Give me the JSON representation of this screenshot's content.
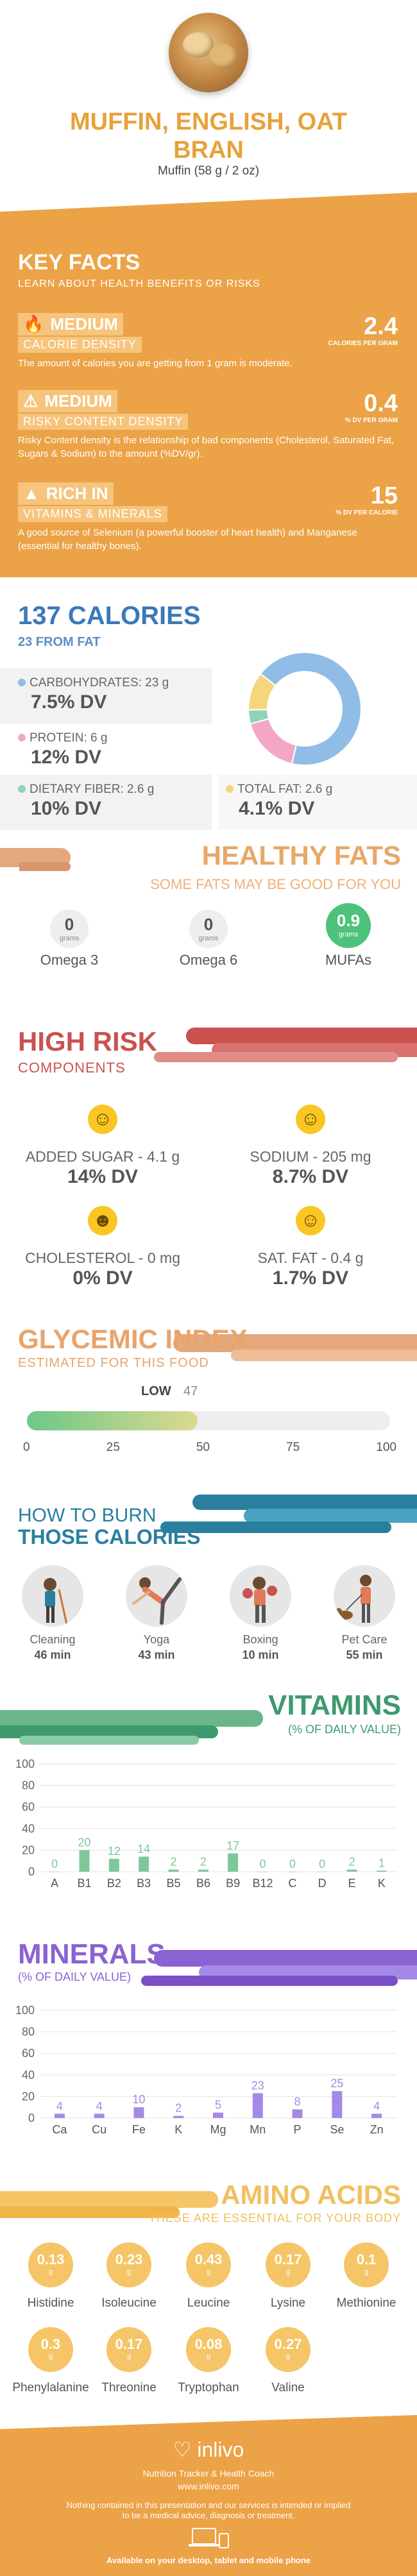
{
  "header": {
    "title_line1": "MUFFIN, ENGLISH, OAT",
    "title_line2": "BRAN",
    "serving": "Muffin (58 g / 2 oz)"
  },
  "key_facts": {
    "title": "KEY FACTS",
    "subtitle": "LEARN ABOUT HEALTH BENEFITS OR RISKS",
    "items": [
      {
        "level": "MEDIUM",
        "label": "CALORIE DENSITY",
        "value": "2.4",
        "unit": "CALORIES PER GRAM",
        "desc": "The amount of calories you are getting from 1 gram is moderate."
      },
      {
        "level": "MEDIUM",
        "label": "RISKY CONTENT DENSITY",
        "value": "0.4",
        "unit": "% DV PER GRAM",
        "desc": "Risky Content density is the relationship of bad components (Cholesterol, Saturated Fat, Sugars & Sodium) to the amount (%DV/gr)."
      },
      {
        "level": "RICH  IN",
        "label": "VITAMINS & MINERALS",
        "value": "15",
        "unit": "% DV PER CALORIE",
        "desc": "A good source of Selenium (a powerful booster of heart health) and Manganese (essential for healthy bones)."
      }
    ]
  },
  "calories": {
    "title": "137 CALORIES",
    "subtitle": "23 FROM FAT",
    "carbs_label": "CARBOHYDRATES: 23 g",
    "carbs_dv": "7.5% DV",
    "protein_label": "PROTEIN: 6 g",
    "protein_dv": "12% DV",
    "fiber_label": "DIETARY FIBER: 2.6 g",
    "fiber_dv": "10% DV",
    "fat_label": "TOTAL FAT: 2.6 g",
    "fat_dv": "4.1% DV",
    "colors": {
      "carbs": "#8fbde6",
      "protein": "#f3a6c6",
      "fiber": "#8fd3b5",
      "fat": "#f7d57d"
    },
    "donut_shares": {
      "carbs": 0.68,
      "protein": 0.17,
      "fiber": 0.04,
      "fat": 0.11
    }
  },
  "healthy_fats": {
    "title": "HEALTHY FATS",
    "subtitle": "SOME FATS MAY BE GOOD FOR YOU",
    "unit": "grams",
    "items": [
      {
        "value": "0",
        "label": "Omega 3"
      },
      {
        "value": "0",
        "label": "Omega 6"
      },
      {
        "value": "0.9",
        "label": "MUFAs"
      }
    ]
  },
  "high_risk": {
    "title": "HIGH RISK",
    "subtitle": "COMPONENTS",
    "items": [
      {
        "label": "ADDED SUGAR - 4.1 g",
        "dv": "14% DV"
      },
      {
        "label": "SODIUM - 205 mg",
        "dv": "8.7% DV"
      },
      {
        "label": "CHOLESTEROL - 0 mg",
        "dv": "0% DV"
      },
      {
        "label": "SAT. FAT - 0.4 g",
        "dv": "1.7% DV"
      }
    ]
  },
  "glycemic": {
    "title": "GLYCEMIC INDEX",
    "subtitle": "ESTIMATED FOR THIS FOOD",
    "level": "LOW",
    "value": "47",
    "value_num": 47,
    "ticks": [
      "0",
      "25",
      "50",
      "75",
      "100"
    ]
  },
  "burn": {
    "title1": "HOW TO BURN",
    "title2": "THOSE CALORIES",
    "items": [
      {
        "label": "Cleaning",
        "minutes": "46 min"
      },
      {
        "label": "Yoga",
        "minutes": "43 min"
      },
      {
        "label": "Boxing",
        "minutes": "10 min"
      },
      {
        "label": "Pet Care",
        "minutes": "55 min"
      }
    ]
  },
  "vitamins": {
    "title": "VITAMINS",
    "subtitle": "(% OF DAILY VALUE)"
  },
  "minerals": {
    "title": "MINERALS",
    "subtitle": "(% OF DAILY VALUE)"
  },
  "chart_data": [
    {
      "type": "bar",
      "categories": [
        "A",
        "B1",
        "B2",
        "B3",
        "B5",
        "B6",
        "B9",
        "B12",
        "C",
        "D",
        "E",
        "K"
      ],
      "values": [
        0,
        20,
        12,
        14,
        2,
        2,
        17,
        0,
        0,
        0,
        2,
        1
      ],
      "ylim": [
        0,
        100
      ],
      "yticks": [
        "0",
        "20",
        "40",
        "60",
        "80",
        "100"
      ],
      "color": "#7fc79a"
    },
    {
      "type": "bar",
      "categories": [
        "Ca",
        "Cu",
        "Fe",
        "K",
        "Mg",
        "Mn",
        "P",
        "Se",
        "Zn"
      ],
      "values": [
        4,
        4,
        10,
        2,
        5,
        23,
        8,
        25,
        4
      ],
      "ylim": [
        0,
        100
      ],
      "yticks": [
        "0",
        "20",
        "40",
        "60",
        "80",
        "100"
      ],
      "color": "#a48ae6"
    }
  ],
  "amino": {
    "title": "AMINO ACIDS",
    "subtitle": "THESE ARE ESSENTIAL FOR YOUR BODY",
    "unit": "g",
    "items": [
      {
        "value": "0.13",
        "label": "Histidine"
      },
      {
        "value": "0.23",
        "label": "Isoleucine"
      },
      {
        "value": "0.43",
        "label": "Leucine"
      },
      {
        "value": "0.17",
        "label": "Lysine"
      },
      {
        "value": "0.1",
        "label": "Methionine"
      },
      {
        "value": "0.3",
        "label": "Phenylalanine"
      },
      {
        "value": "0.17",
        "label": "Threonine"
      },
      {
        "value": "0.08",
        "label": "Tryptophan"
      },
      {
        "value": "0.27",
        "label": "Valine"
      }
    ]
  },
  "footer": {
    "brand": "inlivo",
    "tagline": "Nutrition Tracker & Health Coach",
    "url": "www.inlivo.com",
    "disclaimer1": "Nothing contained in this presentation and our services is intended or implied",
    "disclaimer2": "to be a medical advice, diagnosis or treatment.",
    "available": "Available on your desktop, tablet and mobile phone"
  }
}
